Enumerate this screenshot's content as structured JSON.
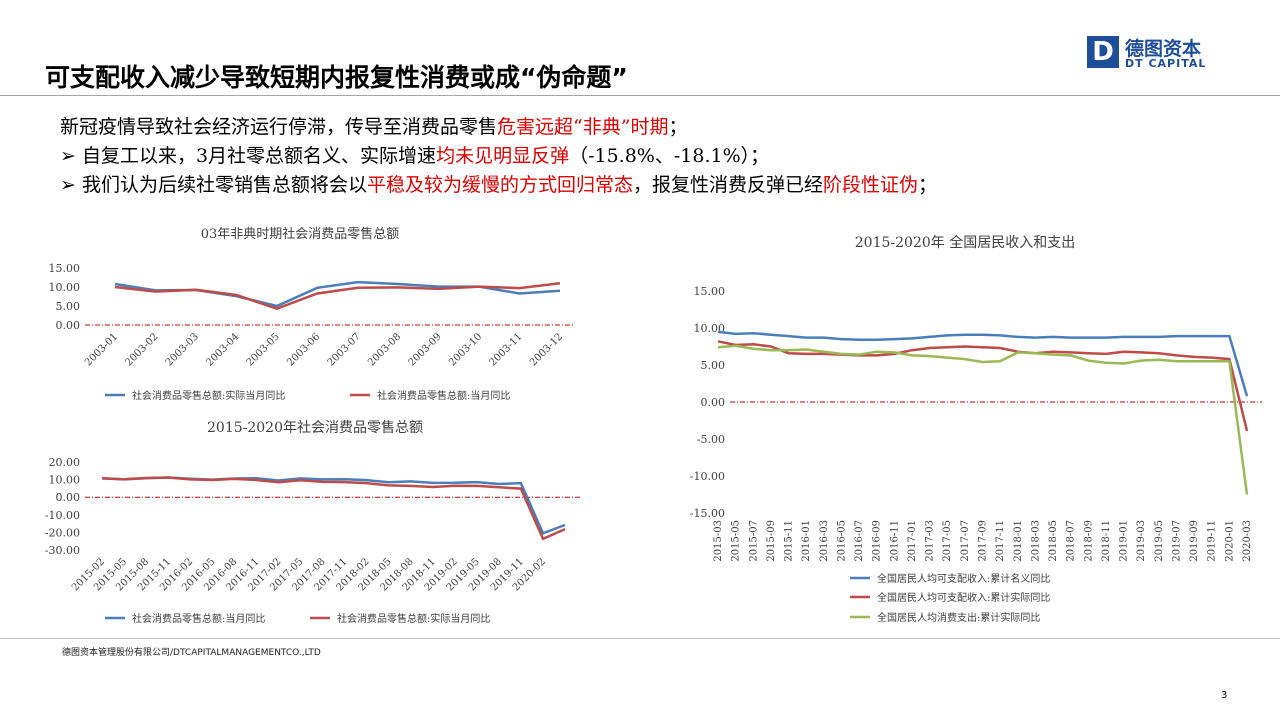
{
  "header": {
    "title": "可支配收入减少导致短期内报复性消费或成“伪命题”",
    "logo_name": "德图资本",
    "logo_en": "DT CAPITAL"
  },
  "bullets": [
    [
      "新冠疫情导致社会经济运行停滞，传导至消费品零售",
      "危害远超“非典”时期",
      "；"
    ],
    [
      "自复工以来，3月社零总额名义、实际增速",
      "均未见明显反弹",
      "（-15.8%、-18.1%）；"
    ],
    [
      "我们认为后续社零销售总额将会以",
      "平稳及较为缓慢的方式回归常态",
      "，报复性消费反弹已经",
      "阶段性证伪",
      "；"
    ]
  ],
  "chart_data": [
    {
      "type": "line",
      "title": "03年非典时期社会消费品零售总额",
      "categories": [
        "2003-01",
        "2003-02",
        "2003-03",
        "2003-04",
        "2003-05",
        "2003-06",
        "2003-07",
        "2003-08",
        "2003-09",
        "2003-10",
        "2003-11",
        "2003-12"
      ],
      "series": [
        {
          "name": "社会消费品零售总额:实际当月同比",
          "color": "#4a7ebb",
          "values": [
            10.8,
            9.1,
            9.2,
            7.6,
            5.0,
            9.8,
            11.3,
            10.8,
            10.1,
            10.1,
            8.3,
            9.0
          ]
        },
        {
          "name": "社会消费品零售总额:当月同比",
          "color": "#be4b48",
          "values": [
            10.0,
            8.8,
            9.3,
            7.9,
            4.3,
            8.3,
            9.8,
            9.9,
            9.5,
            10.1,
            9.7,
            11.0
          ]
        }
      ],
      "ylim": [
        0,
        15
      ],
      "yticks": [
        {
          "value": 0,
          "label": "0.00"
        },
        {
          "value": 5,
          "label": "5.00"
        },
        {
          "value": 10,
          "label": "10.00"
        },
        {
          "value": 15,
          "label": "15.00"
        }
      ],
      "grid": false,
      "zero_line_color": "#c00000"
    },
    {
      "type": "line",
      "title": "2015-2020年社会消费品零售总额",
      "categories": [
        "2015-02",
        "2015-05",
        "2015-08",
        "2015-11",
        "2016-02",
        "2016-05",
        "2016-08",
        "2016-11",
        "2017-02",
        "2017-05",
        "2017-08",
        "2017-11",
        "2018-02",
        "2018-05",
        "2018-08",
        "2018-11",
        "2019-02",
        "2019-05",
        "2019-08",
        "2019-11",
        "2020-02",
        null
      ],
      "series": [
        {
          "name": "社会消费品零售总额:当月同比",
          "color": "#4a7ebb",
          "values": [
            10.7,
            10.1,
            10.8,
            11.2,
            10.5,
            10.0,
            10.6,
            10.8,
            9.5,
            10.7,
            10.1,
            10.2,
            9.7,
            8.5,
            9.0,
            8.1,
            8.2,
            8.6,
            7.5,
            8.0,
            -20.5,
            -15.8
          ]
        },
        {
          "name": "社会消费品零售总额:实际当月同比",
          "color": "#be4b48",
          "values": [
            10.8,
            10.2,
            10.9,
            11.2,
            10.1,
            9.8,
            10.4,
            9.8,
            8.5,
            9.6,
            8.7,
            8.6,
            8.0,
            6.7,
            6.4,
            5.8,
            6.5,
            6.4,
            5.6,
            4.9,
            -23.7,
            -18.1
          ]
        }
      ],
      "ylim": [
        -30,
        20
      ],
      "yticks": [
        {
          "value": -30,
          "label": "-30.00"
        },
        {
          "value": -20,
          "label": "-20.00"
        },
        {
          "value": -10,
          "label": "-10.00"
        },
        {
          "value": 0,
          "label": "0.00"
        },
        {
          "value": 10,
          "label": "10.00"
        },
        {
          "value": 20,
          "label": "20.00"
        }
      ],
      "grid": false,
      "zero_line_color": "#c00000"
    },
    {
      "type": "line",
      "title": "2015-2020年 全国居民收入和支出",
      "categories": [
        "2015-03",
        "2015-05",
        "2015-07",
        "2015-09",
        "2015-11",
        "2016-01",
        "2016-03",
        "2016-05",
        "2016-07",
        "2016-09",
        "2016-11",
        "2017-01",
        "2017-03",
        "2017-05",
        "2017-07",
        "2017-09",
        "2017-11",
        "2018-01",
        "2018-03",
        "2018-05",
        "2018-07",
        "2018-09",
        "2018-11",
        "2019-01",
        "2019-03",
        "2019-05",
        "2019-07",
        "2019-09",
        "2019-11",
        "2020-01",
        "2020-03"
      ],
      "series": [
        {
          "name": "全国居民人均可支配收入:累计名义同比",
          "color": "#4a7ebb",
          "values": [
            9.5,
            9.2,
            9.3,
            9.1,
            8.9,
            8.7,
            8.7,
            8.5,
            8.4,
            8.4,
            8.5,
            8.6,
            8.8,
            9.0,
            9.1,
            9.1,
            9.0,
            8.8,
            8.7,
            8.8,
            8.7,
            8.7,
            8.7,
            8.8,
            8.8,
            8.8,
            8.9,
            8.9,
            8.9,
            8.9,
            0.8
          ]
        },
        {
          "name": "全国居民人均可支配收入:累计实际同比",
          "color": "#be4b48",
          "values": [
            8.2,
            7.7,
            7.8,
            7.5,
            6.6,
            6.5,
            6.5,
            6.4,
            6.3,
            6.3,
            6.5,
            7.0,
            7.3,
            7.4,
            7.5,
            7.4,
            7.3,
            6.8,
            6.6,
            6.8,
            6.7,
            6.6,
            6.5,
            6.8,
            6.7,
            6.6,
            6.3,
            6.1,
            6.0,
            5.8,
            -3.9
          ]
        },
        {
          "name": "全国居民人均消费支出:累计实际同比",
          "color": "#98b954",
          "values": [
            7.4,
            7.6,
            7.2,
            7.0,
            7.0,
            7.1,
            6.8,
            6.5,
            6.4,
            6.8,
            6.7,
            6.3,
            6.2,
            6.0,
            5.8,
            5.4,
            5.5,
            6.7,
            6.6,
            6.4,
            6.3,
            5.6,
            5.3,
            5.2,
            5.6,
            5.7,
            5.5,
            5.5,
            5.5,
            5.5,
            -12.5
          ]
        }
      ],
      "ylim": [
        -15,
        15
      ],
      "yticks": [
        {
          "value": -15,
          "label": "-15.00"
        },
        {
          "value": -10,
          "label": "-10.00"
        },
        {
          "value": -5,
          "label": "-5.00"
        },
        {
          "value": 0,
          "label": "0.00"
        },
        {
          "value": 5,
          "label": "5.00"
        },
        {
          "value": 10,
          "label": "10.00"
        },
        {
          "value": 15,
          "label": "15.00"
        }
      ],
      "grid": false,
      "zero_line_color": "#c00000"
    }
  ],
  "footer": "德图资本管理股份有限公司/DTCAPITALMANAGEMENTCO.,LTD",
  "page_number": "3"
}
